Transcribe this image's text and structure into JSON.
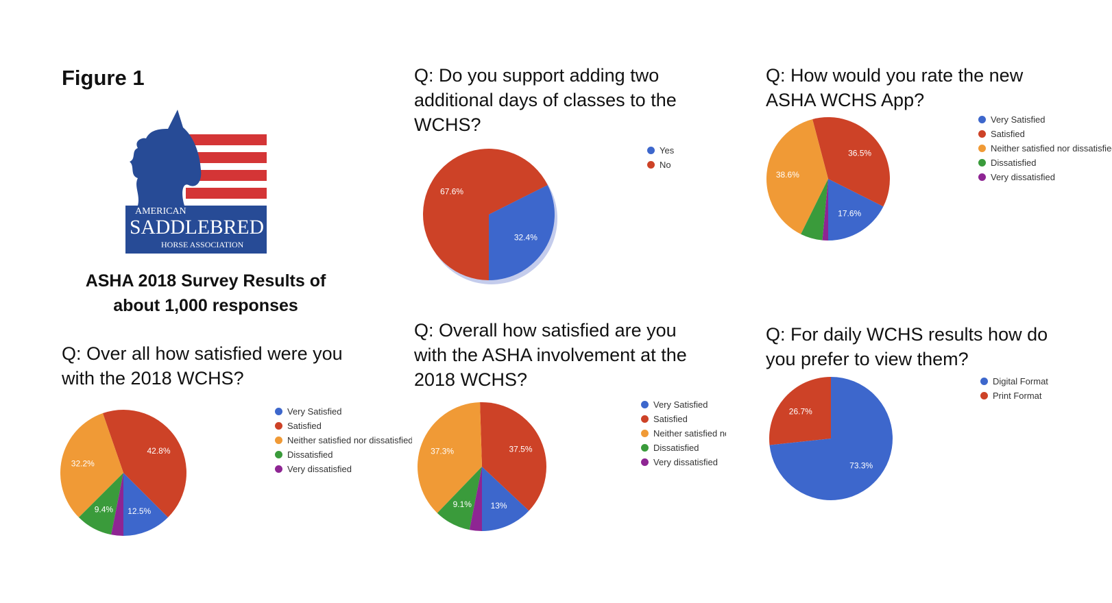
{
  "figure_title": "Figure 1",
  "logo_text": {
    "line1": "AMERICAN",
    "line2": "SADDLEBRED",
    "line3": "HORSE ASSOCIATION"
  },
  "subtitle": "ASHA 2018 Survey Results of about 1,000 responses",
  "colors": {
    "blue": "#3d67cc",
    "red": "#cd4227",
    "orange": "#f09a36",
    "green": "#3a9b3b",
    "purple": "#8e2593",
    "logo_blue": "#274b96",
    "logo_red": "#d43536"
  },
  "chart_data": [
    {
      "id": "overall_wchs",
      "type": "pie",
      "title": "Q: Over all how satisfied were you with the 2018 WCHS?",
      "categories": [
        "Very Satisfied",
        "Satisfied",
        "Neither satisfied nor dissatisfied",
        "Dissatisfied",
        "Very dissatisfied"
      ],
      "values": [
        12.5,
        42.8,
        32.2,
        9.4,
        3.1
      ],
      "labels": [
        "12.5%",
        "42.8%",
        "32.2%",
        "9.4%",
        ""
      ],
      "colors": [
        "#3d67cc",
        "#cd4227",
        "#f09a36",
        "#3a9b3b",
        "#8e2593"
      ],
      "legend_position": "right"
    },
    {
      "id": "add_two_days",
      "type": "pie",
      "title": "Q: Do you support adding two additional days of classes to the WCHS?",
      "categories": [
        "Yes",
        "No"
      ],
      "values": [
        32.4,
        67.6
      ],
      "labels": [
        "32.4%",
        "67.6%"
      ],
      "colors": [
        "#3d67cc",
        "#cd4227"
      ],
      "legend_position": "top-right"
    },
    {
      "id": "asha_involvement",
      "type": "pie",
      "title": "Q: Overall how satisfied are you with the ASHA involvement at the 2018 WCHS?",
      "categories": [
        "Very Satisfied",
        "Satisfied",
        "Neither satisfied nor dissatisfied",
        "Dissatisfied",
        "Very dissatisfied"
      ],
      "legend_labels": [
        "Very Satisfied",
        "Satisfied",
        "Neither satisfied no",
        "Dissatisfied",
        "Very dissatisfied"
      ],
      "values": [
        13,
        37.5,
        37.3,
        9.1,
        3.1
      ],
      "labels": [
        "13%",
        "37.5%",
        "37.3%",
        "9.1%",
        ""
      ],
      "colors": [
        "#3d67cc",
        "#cd4227",
        "#f09a36",
        "#3a9b3b",
        "#8e2593"
      ],
      "legend_position": "right"
    },
    {
      "id": "wchs_app",
      "type": "pie",
      "title": "Q: How would you rate the new ASHA WCHS App?",
      "categories": [
        "Very Satisfied",
        "Satisfied",
        "Neither satisfied nor dissatisfied",
        "Dissatisfied",
        "Very dissatisfied"
      ],
      "values": [
        17.6,
        36.5,
        38.6,
        5.8,
        1.5
      ],
      "labels": [
        "17.6%",
        "36.5%",
        "38.6%",
        "",
        ""
      ],
      "colors": [
        "#3d67cc",
        "#cd4227",
        "#f09a36",
        "#3a9b3b",
        "#8e2593"
      ],
      "legend_position": "right"
    },
    {
      "id": "daily_results",
      "type": "pie",
      "title": "Q: For daily WCHS results how do you prefer to view them?",
      "categories": [
        "Digital Format",
        "Print Format"
      ],
      "values": [
        73.3,
        26.7
      ],
      "labels": [
        "73.3%",
        "26.7%"
      ],
      "colors": [
        "#3d67cc",
        "#cd4227"
      ],
      "legend_position": "top-right"
    }
  ]
}
